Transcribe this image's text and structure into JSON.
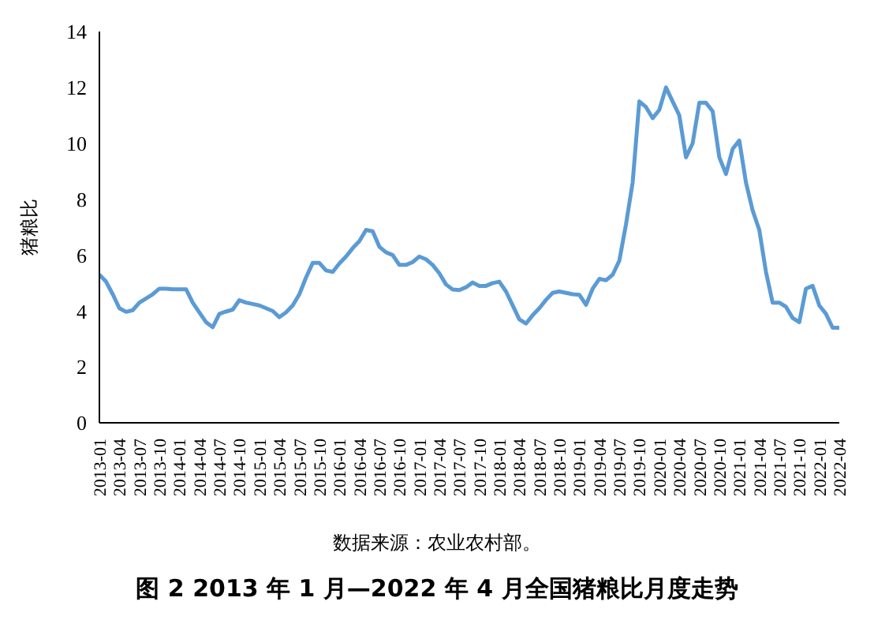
{
  "chart_data": {
    "type": "line",
    "ylabel": "猪粮比",
    "title": "图 2 2013 年 1 月—2022 年 4 月全国猪粮比月度走势",
    "annotations": [
      "数据来源：农业农村部。"
    ],
    "categories": [
      "2013-01",
      null,
      null,
      "2013-04",
      null,
      null,
      "2013-07",
      null,
      null,
      "2013-10",
      null,
      null,
      "2014-01",
      null,
      null,
      "2014-04",
      null,
      null,
      "2014-07",
      null,
      null,
      "2014-10",
      null,
      null,
      "2015-01",
      null,
      null,
      "2015-04",
      null,
      null,
      "2015-07",
      null,
      null,
      "2015-10",
      null,
      null,
      "2016-01",
      null,
      null,
      "2016-04",
      null,
      null,
      "2016-07",
      null,
      null,
      "2016-10",
      null,
      null,
      "2017-01",
      null,
      null,
      "2017-04",
      null,
      null,
      "2017-07",
      null,
      null,
      "2017-10",
      null,
      null,
      "2018-01",
      null,
      null,
      "2018-04",
      null,
      null,
      "2018-07",
      null,
      null,
      "2018-10",
      null,
      null,
      "2019-01",
      null,
      null,
      "2019-04",
      null,
      null,
      "2019-07",
      null,
      null,
      "2019-10",
      null,
      null,
      "2020-01",
      null,
      null,
      "2020-04",
      null,
      null,
      "2020-07",
      null,
      null,
      "2020-10",
      null,
      null,
      "2021-01",
      null,
      null,
      "2021-04",
      null,
      null,
      "2021-07",
      null,
      null,
      "2021-10",
      null,
      null,
      "2022-01",
      null,
      null,
      "2022-04"
    ],
    "series": [
      {
        "color": "#5b9bd5",
        "values": [
          5.3,
          5.05,
          4.6,
          4.1,
          3.97,
          4.03,
          4.3,
          4.45,
          4.6,
          4.8,
          4.8,
          4.78,
          4.78,
          4.78,
          4.3,
          3.95,
          3.6,
          3.42,
          3.9,
          3.98,
          4.05,
          4.39,
          4.3,
          4.25,
          4.2,
          4.1,
          4.0,
          3.78,
          3.95,
          4.2,
          4.6,
          5.2,
          5.72,
          5.72,
          5.45,
          5.4,
          5.7,
          5.95,
          6.25,
          6.5,
          6.9,
          6.85,
          6.3,
          6.1,
          6.0,
          5.65,
          5.65,
          5.75,
          5.95,
          5.85,
          5.65,
          5.35,
          4.95,
          4.77,
          4.75,
          4.85,
          5.02,
          4.9,
          4.9,
          5.0,
          5.05,
          4.7,
          4.2,
          3.7,
          3.55,
          3.85,
          4.1,
          4.4,
          4.65,
          4.7,
          4.65,
          4.6,
          4.58,
          4.22,
          4.8,
          5.15,
          5.1,
          5.3,
          5.8,
          7.1,
          8.6,
          11.5,
          11.3,
          10.9,
          11.2,
          12.0,
          11.5,
          11.0,
          9.5,
          10.0,
          11.45,
          11.45,
          11.15,
          9.5,
          8.9,
          9.8,
          10.1,
          8.6,
          7.6,
          6.9,
          5.4,
          4.3,
          4.3,
          4.15,
          3.75,
          3.6,
          4.8,
          4.9,
          4.2,
          3.9,
          3.4,
          3.4
        ]
      }
    ],
    "ylim": [
      0,
      14
    ],
    "yticks": [
      0,
      2,
      4,
      6,
      8,
      10,
      12,
      14
    ],
    "grid": false,
    "legend": false,
    "marker": "none",
    "line_style": "solid"
  }
}
